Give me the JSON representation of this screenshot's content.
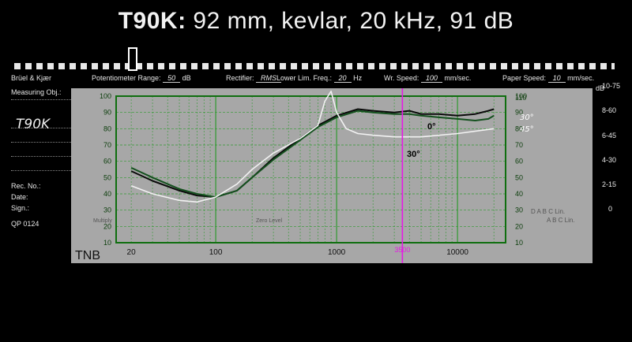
{
  "title": {
    "model": "T90K:",
    "specs": " 92 mm, kevlar, 20 kHz, 91 dB"
  },
  "recorder": {
    "brand": "Brüel & Kjær",
    "measuring_obj": "Measuring Obj.:",
    "obj_value": "T90K",
    "potentiometer_label": "Potentiometer Range:",
    "potentiometer_value": "50",
    "potentiometer_unit": "dB",
    "rectifier_label": "Rectifier:",
    "rectifier_value": "RMS",
    "lowerlim_label": "Lower Lim. Freq.:",
    "lowerlim_value": "20",
    "lowerlim_unit": "Hz",
    "wrspeed_label": "Wr. Speed:",
    "wrspeed_value": "100",
    "wrspeed_unit": "mm/sec.",
    "paperspeed_label": "Paper Speed:",
    "paperspeed_value": "10",
    "paperspeed_unit": "mm/sec.",
    "rec_no": "Rec. No.:",
    "date": "Date:",
    "sign": "Sign.:",
    "form": "QP 0124",
    "zero_level": "Zero Level",
    "multiply": "Multiply",
    "right_db": "dB",
    "right_scale": [
      "10-75",
      "8-60",
      "6-45",
      "4-30",
      "2-15",
      "0"
    ],
    "lin_labels": "D A B C Lin.",
    "lin_labels2": "A B C Lin."
  },
  "chart_data": {
    "type": "line",
    "x_scale": "log",
    "xlim": [
      15,
      25000
    ],
    "ylim": [
      10,
      100
    ],
    "x_ticks": [
      20,
      100,
      1000,
      10000
    ],
    "y_ticks": [
      10,
      20,
      30,
      40,
      50,
      60,
      70,
      80,
      90,
      100
    ],
    "y_ticks_right": [
      10,
      20,
      30,
      40,
      50,
      60,
      70,
      80,
      90,
      100,
      110
    ],
    "grid": true,
    "marker": {
      "x": 3500,
      "label": "3500",
      "color": "#e619e6"
    },
    "panel_label": "TNB",
    "series": [
      {
        "name": "0°",
        "color": "#0a0a0a",
        "x": [
          20,
          30,
          50,
          70,
          100,
          150,
          200,
          300,
          500,
          700,
          1000,
          1500,
          2000,
          3000,
          4000,
          5000,
          7000,
          10000,
          14000,
          18000,
          20000
        ],
        "y": [
          54,
          48,
          42,
          39,
          38,
          42,
          50,
          62,
          74,
          82,
          88,
          92,
          91,
          90,
          91,
          89,
          89,
          88,
          89,
          91,
          92
        ]
      },
      {
        "name": "30°",
        "color": "#14501e",
        "x": [
          20,
          30,
          50,
          70,
          100,
          150,
          200,
          300,
          500,
          700,
          1000,
          1500,
          2000,
          3000,
          4000,
          5000,
          7000,
          10000,
          14000,
          18000,
          20000
        ],
        "y": [
          56,
          50,
          43,
          40,
          38,
          42,
          50,
          61,
          73,
          81,
          87,
          91,
          90,
          89,
          89,
          88,
          87,
          86,
          85,
          86,
          88
        ]
      },
      {
        "name": "45°",
        "color": "#f2f2f2",
        "x": [
          20,
          30,
          50,
          70,
          100,
          150,
          200,
          300,
          500,
          700,
          800,
          900,
          1000,
          1200,
          1500,
          2000,
          3000,
          5000,
          10000,
          20000
        ],
        "y": [
          45,
          40,
          36,
          35,
          38,
          46,
          55,
          65,
          74,
          82,
          97,
          103,
          90,
          80,
          77,
          76,
          75,
          75,
          77,
          80
        ]
      }
    ],
    "annotations": [
      "0°",
      "30°",
      "30°",
      "45°"
    ]
  }
}
